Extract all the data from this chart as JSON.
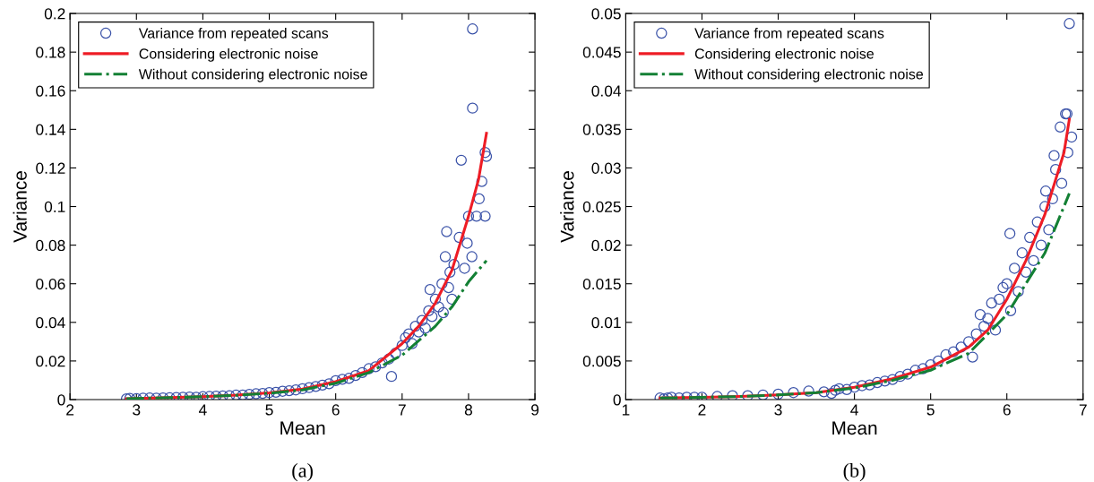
{
  "chart_data": [
    {
      "type": "scatter",
      "xlabel": "Mean",
      "ylabel": "Variance",
      "annotations": [
        "(a)"
      ],
      "legend": "top left",
      "grid": false,
      "xlim": [
        2,
        9
      ],
      "xticks": [
        2,
        3,
        4,
        5,
        6,
        7,
        8,
        9
      ],
      "ylim": [
        0,
        0.2
      ],
      "yticks": [
        0,
        0.02,
        0.04,
        0.06,
        0.08,
        0.1,
        0.12,
        0.14,
        0.16,
        0.18,
        0.2
      ],
      "series": [
        {
          "name": "Variance from repeated scans",
          "marker": "circle",
          "color": "#3a52a8",
          "x": [
            2.85,
            2.9,
            3.0,
            3.1,
            3.2,
            3.3,
            3.4,
            3.5,
            3.6,
            3.7,
            3.8,
            3.9,
            4.0,
            4.1,
            4.2,
            4.3,
            4.4,
            4.5,
            4.6,
            4.7,
            4.8,
            4.9,
            5.0,
            5.1,
            5.2,
            5.3,
            5.4,
            5.5,
            5.6,
            5.7,
            5.8,
            5.9,
            6.0,
            6.1,
            6.2,
            6.3,
            6.4,
            6.5,
            6.6,
            6.7,
            6.8,
            6.84,
            6.9,
            7.0,
            7.05,
            7.1,
            7.15,
            7.2,
            7.25,
            7.3,
            7.35,
            7.4,
            7.42,
            7.45,
            7.5,
            7.55,
            7.6,
            7.62,
            7.65,
            7.67,
            7.7,
            7.72,
            7.75,
            7.78,
            7.86,
            7.89,
            7.94,
            7.98,
            8.0,
            8.05,
            8.06,
            8.06,
            8.12,
            8.16,
            8.2,
            8.25,
            8.27,
            8.25
          ],
          "values": [
            0.0004,
            0.0006,
            0.0005,
            0.0007,
            0.0008,
            0.0007,
            0.0009,
            0.001,
            0.0011,
            0.0012,
            0.0013,
            0.0012,
            0.0015,
            0.0016,
            0.0018,
            0.0019,
            0.002,
            0.0023,
            0.0024,
            0.0027,
            0.003,
            0.0032,
            0.0036,
            0.0038,
            0.0043,
            0.0046,
            0.005,
            0.0056,
            0.0062,
            0.0068,
            0.0075,
            0.0082,
            0.0098,
            0.0105,
            0.011,
            0.0125,
            0.014,
            0.016,
            0.017,
            0.019,
            0.021,
            0.012,
            0.024,
            0.028,
            0.032,
            0.034,
            0.029,
            0.038,
            0.035,
            0.041,
            0.037,
            0.046,
            0.057,
            0.043,
            0.052,
            0.048,
            0.06,
            0.045,
            0.074,
            0.087,
            0.058,
            0.066,
            0.052,
            0.07,
            0.084,
            0.124,
            0.068,
            0.081,
            0.095,
            0.074,
            0.192,
            0.151,
            0.095,
            0.104,
            0.113,
            0.128,
            0.126,
            0.095
          ]
        },
        {
          "name": "Considering electronic noise",
          "type": "line",
          "line_style": "solid",
          "color": "#ee1c25",
          "x": [
            2.85,
            3.5,
            4,
            4.5,
            5,
            5.5,
            6,
            6.5,
            7,
            7.25,
            7.5,
            7.75,
            8,
            8.15,
            8.27
          ],
          "values": [
            0.0005,
            0.001,
            0.0015,
            0.0023,
            0.0035,
            0.0055,
            0.0093,
            0.015,
            0.029,
            0.038,
            0.05,
            0.067,
            0.095,
            0.114,
            0.138
          ]
        },
        {
          "name": "Without considering electronic noise",
          "type": "line",
          "line_style": "dashdot",
          "color": "#138034",
          "x": [
            2.85,
            3.5,
            4,
            4.5,
            5,
            5.5,
            6,
            6.5,
            7,
            7.5,
            7.75,
            8,
            8.27
          ],
          "values": [
            0.0005,
            0.001,
            0.0015,
            0.0022,
            0.0033,
            0.005,
            0.0085,
            0.014,
            0.023,
            0.038,
            0.048,
            0.061,
            0.072
          ]
        }
      ]
    },
    {
      "type": "scatter",
      "xlabel": "Mean",
      "ylabel": "Variance",
      "annotations": [
        "(b)"
      ],
      "legend": "top left",
      "grid": false,
      "xlim": [
        1,
        7
      ],
      "xticks": [
        1,
        2,
        3,
        4,
        5,
        6,
        7
      ],
      "ylim": [
        0,
        0.05
      ],
      "yticks": [
        0,
        0.005,
        0.01,
        0.015,
        0.02,
        0.025,
        0.03,
        0.035,
        0.04,
        0.045,
        0.05
      ],
      "series": [
        {
          "name": "Variance from repeated scans",
          "marker": "circle",
          "color": "#3a52a8",
          "x": [
            1.45,
            1.5,
            1.55,
            1.6,
            1.7,
            1.8,
            1.9,
            2.0,
            2.2,
            2.4,
            2.6,
            2.8,
            3.0,
            3.2,
            3.4,
            3.6,
            3.7,
            3.75,
            3.8,
            3.9,
            4.0,
            4.1,
            4.2,
            4.3,
            4.4,
            4.5,
            4.6,
            4.7,
            4.8,
            4.9,
            5.0,
            5.1,
            5.2,
            5.3,
            5.4,
            5.5,
            5.55,
            5.6,
            5.65,
            5.7,
            5.75,
            5.8,
            5.85,
            5.9,
            5.95,
            6.0,
            6.04,
            6.05,
            6.1,
            6.15,
            6.2,
            6.25,
            6.3,
            6.35,
            6.4,
            6.45,
            6.5,
            6.51,
            6.55,
            6.6,
            6.62,
            6.64,
            6.7,
            6.72,
            6.77,
            6.79,
            6.8,
            6.82,
            6.85
          ],
          "values": [
            0.0002,
            0.0001,
            0.0002,
            0.0003,
            0.0002,
            0.0003,
            0.0003,
            0.0003,
            0.0004,
            0.0005,
            0.0005,
            0.0006,
            0.0007,
            0.0009,
            0.0011,
            0.001,
            0.0008,
            0.0012,
            0.0014,
            0.0013,
            0.0016,
            0.0018,
            0.0019,
            0.0022,
            0.0024,
            0.0026,
            0.003,
            0.0033,
            0.0038,
            0.004,
            0.0045,
            0.005,
            0.0058,
            0.0062,
            0.0068,
            0.0075,
            0.0055,
            0.0085,
            0.011,
            0.0095,
            0.0105,
            0.0125,
            0.009,
            0.013,
            0.0145,
            0.015,
            0.0215,
            0.0115,
            0.017,
            0.014,
            0.019,
            0.0165,
            0.021,
            0.018,
            0.023,
            0.02,
            0.025,
            0.027,
            0.022,
            0.026,
            0.0316,
            0.0298,
            0.0353,
            0.028,
            0.037,
            0.037,
            0.032,
            0.0487,
            0.034
          ]
        },
        {
          "name": "Considering electronic noise",
          "type": "line",
          "line_style": "solid",
          "color": "#ee1c25",
          "x": [
            1.45,
            2,
            2.5,
            3,
            3.5,
            4,
            4.5,
            5,
            5.5,
            5.75,
            6,
            6.25,
            6.5,
            6.75,
            6.82
          ],
          "values": [
            0.0002,
            0.0003,
            0.0004,
            0.0006,
            0.0009,
            0.0016,
            0.0027,
            0.0042,
            0.0068,
            0.009,
            0.013,
            0.018,
            0.024,
            0.032,
            0.0363
          ]
        },
        {
          "name": "Without considering electronic noise",
          "type": "line",
          "line_style": "dashdot",
          "color": "#138034",
          "x": [
            1.45,
            2,
            2.5,
            3,
            3.5,
            4,
            4.5,
            5,
            5.5,
            6,
            6.25,
            6.5,
            6.82
          ],
          "values": [
            0.0002,
            0.0003,
            0.0004,
            0.0006,
            0.0009,
            0.0015,
            0.0025,
            0.0038,
            0.006,
            0.011,
            0.015,
            0.019,
            0.0267
          ]
        }
      ]
    }
  ]
}
